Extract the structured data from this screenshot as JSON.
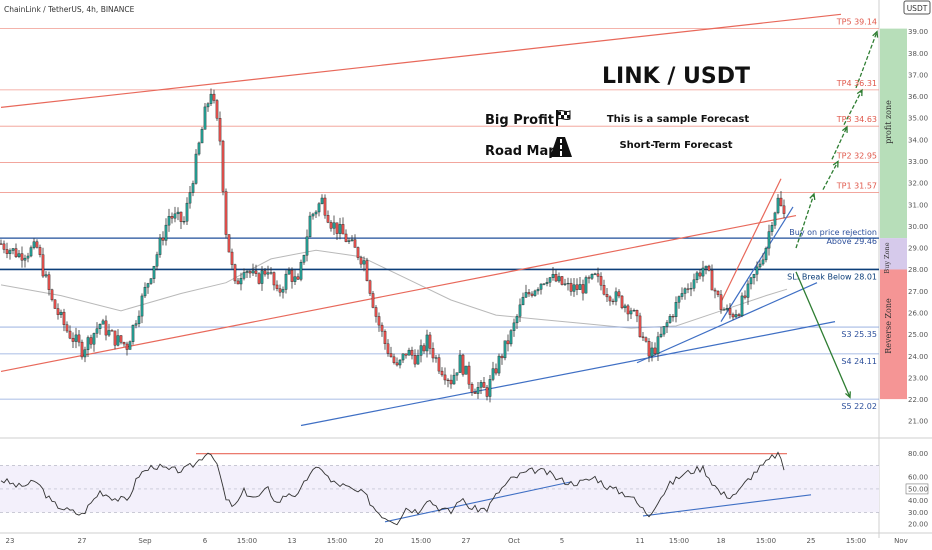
{
  "header": {
    "symbol_line": "ChainLink / TetherUS, 4h, BINANCE",
    "currency_badge": "USDT"
  },
  "texts": {
    "title": "LINK / USDT",
    "big_profit": "Big Profit",
    "road_map": "Road Map",
    "sample": "This is a sample Forecast",
    "short_term": "Short-Term Forecast"
  },
  "zones": {
    "profit": "profit zone",
    "buy": "Buy Zone",
    "reverse": "Reverse Zone"
  },
  "colors": {
    "up": "#26a69a",
    "down": "#ef5350",
    "resistance": "#e8685a",
    "support": "#3f6fc4",
    "arrow": "#2e7d32",
    "profit_zone": "#a5d6a7",
    "buy_zone": "#d1c4e9",
    "reverse_zone": "#f48a8a"
  },
  "chart_data": {
    "type": "candlestick",
    "symbol": "ChainLink / TetherUS",
    "timeframe": "4h",
    "exchange": "BINANCE",
    "ylim": [
      20.5,
      40
    ],
    "y_ticks": [
      21.0,
      22.0,
      23.0,
      24.0,
      25.0,
      26.0,
      27.0,
      28.0,
      29.0,
      30.0,
      31.0,
      32.0,
      33.0,
      34.0,
      35.0,
      36.0,
      37.0,
      38.0,
      39.0
    ],
    "x_ticks": [
      {
        "t": 3,
        "label": "23"
      },
      {
        "t": 27,
        "label": "27"
      },
      {
        "t": 48,
        "label": "Sep"
      },
      {
        "t": 68,
        "label": "6"
      },
      {
        "t": 82,
        "label": "15:00"
      },
      {
        "t": 97,
        "label": "13"
      },
      {
        "t": 112,
        "label": "15:00"
      },
      {
        "t": 126,
        "label": "20"
      },
      {
        "t": 140,
        "label": "15:00"
      },
      {
        "t": 155,
        "label": "27"
      },
      {
        "t": 171,
        "label": "Oct"
      },
      {
        "t": 187,
        "label": "5"
      },
      {
        "t": 213,
        "label": "11"
      },
      {
        "t": 226,
        "label": "15:00"
      },
      {
        "t": 240,
        "label": "18"
      },
      {
        "t": 255,
        "label": "15:00"
      },
      {
        "t": 270,
        "label": "25"
      },
      {
        "t": 285,
        "label": "15:00"
      },
      {
        "t": 300,
        "label": "Nov"
      },
      {
        "t": 316,
        "label": "5"
      }
    ],
    "close_path": [
      [
        0,
        29.2
      ],
      [
        6,
        28.7
      ],
      [
        12,
        29.0
      ],
      [
        17,
        26.5
      ],
      [
        22,
        25.2
      ],
      [
        27,
        24.3
      ],
      [
        33,
        25.5
      ],
      [
        38,
        24.8
      ],
      [
        42,
        24.5
      ],
      [
        46,
        26.2
      ],
      [
        51,
        28.3
      ],
      [
        56,
        30.5
      ],
      [
        61,
        30.2
      ],
      [
        65,
        33.0
      ],
      [
        68,
        35.2
      ],
      [
        70,
        36.3
      ],
      [
        73,
        34.0
      ],
      [
        75,
        29.8
      ],
      [
        78,
        27.2
      ],
      [
        81,
        28.2
      ],
      [
        85,
        27.5
      ],
      [
        89,
        28.1
      ],
      [
        92,
        26.8
      ],
      [
        96,
        27.9
      ],
      [
        99,
        27.3
      ],
      [
        103,
        30.4
      ],
      [
        107,
        31.2
      ],
      [
        110,
        30.2
      ],
      [
        114,
        29.6
      ],
      [
        118,
        28.9
      ],
      [
        121,
        28.4
      ],
      [
        125,
        25.9
      ],
      [
        128,
        24.6
      ],
      [
        132,
        23.4
      ],
      [
        135,
        24.2
      ],
      [
        139,
        23.9
      ],
      [
        142,
        24.7
      ],
      [
        146,
        23.6
      ],
      [
        150,
        22.9
      ],
      [
        153,
        23.8
      ],
      [
        157,
        22.6
      ],
      [
        162,
        22.4
      ],
      [
        166,
        23.8
      ],
      [
        170,
        25.0
      ],
      [
        174,
        26.6
      ],
      [
        178,
        27.2
      ],
      [
        182,
        27.7
      ],
      [
        186,
        27.4
      ],
      [
        190,
        27.1
      ],
      [
        194,
        27.2
      ],
      [
        198,
        27.6
      ],
      [
        202,
        27.0
      ],
      [
        206,
        26.6
      ],
      [
        210,
        26.2
      ],
      [
        213,
        25.2
      ],
      [
        216,
        24.0
      ],
      [
        219,
        24.6
      ],
      [
        223,
        25.8
      ],
      [
        227,
        26.9
      ],
      [
        231,
        27.6
      ],
      [
        234,
        28.1
      ],
      [
        237,
        27.4
      ],
      [
        240,
        26.3
      ],
      [
        243,
        25.9
      ],
      [
        246,
        26.2
      ],
      [
        249,
        27.0
      ],
      [
        252,
        28.0
      ],
      [
        255,
        29.1
      ],
      [
        257,
        30.4
      ],
      [
        259,
        31.2
      ],
      [
        261,
        30.5
      ]
    ],
    "moving_average": [
      [
        0,
        27.3
      ],
      [
        20,
        26.8
      ],
      [
        40,
        26.1
      ],
      [
        60,
        26.9
      ],
      [
        75,
        27.4
      ],
      [
        90,
        28.5
      ],
      [
        105,
        28.9
      ],
      [
        120,
        28.6
      ],
      [
        135,
        27.6
      ],
      [
        150,
        26.6
      ],
      [
        165,
        25.9
      ],
      [
        180,
        25.7
      ],
      [
        195,
        25.5
      ],
      [
        210,
        25.3
      ],
      [
        225,
        25.4
      ],
      [
        240,
        26.1
      ],
      [
        255,
        26.8
      ],
      [
        262,
        27.1
      ]
    ],
    "levels": [
      {
        "label": "TP5 39.14",
        "value": 39.14,
        "kind": "target"
      },
      {
        "label": "TP4 36.31",
        "value": 36.31,
        "kind": "target"
      },
      {
        "label": "TP3 34.63",
        "value": 34.63,
        "kind": "target"
      },
      {
        "label": "TP2 32.95",
        "value": 32.95,
        "kind": "target"
      },
      {
        "label": "TP1 31.57",
        "value": 31.57,
        "kind": "target"
      },
      {
        "label": "Buy on price rejection",
        "value": 29.46,
        "kind": "buy"
      },
      {
        "label": "Above 29.46",
        "value": 29.46,
        "kind": "buy"
      },
      {
        "label": "SL: Break Below 28.01",
        "value": 28.01,
        "kind": "stop"
      },
      {
        "label": "S3 25.35",
        "value": 25.35,
        "kind": "support"
      },
      {
        "label": "S4 24.11",
        "value": 24.11,
        "kind": "support"
      },
      {
        "label": "S5 22.02",
        "value": 22.02,
        "kind": "support"
      }
    ],
    "trendlines": [
      {
        "kind": "resistance",
        "from": [
          0,
          35.5
        ],
        "to": [
          280,
          39.8
        ]
      },
      {
        "kind": "resistance",
        "from": [
          0,
          23.3
        ],
        "to": [
          265,
          30.5
        ]
      },
      {
        "kind": "resistance",
        "from": [
          240,
          26.5
        ],
        "to": [
          260,
          32.2
        ]
      },
      {
        "kind": "support",
        "from": [
          100,
          20.8
        ],
        "to": [
          278,
          25.6
        ]
      },
      {
        "kind": "support",
        "from": [
          212,
          23.7
        ],
        "to": [
          272,
          27.4
        ]
      },
      {
        "kind": "support",
        "from": [
          240,
          25.6
        ],
        "to": [
          264,
          30.9
        ]
      }
    ],
    "forecast_arrows": [
      {
        "kind": "up",
        "from": [
          265,
          29.0
        ],
        "to": [
          271,
          31.5
        ]
      },
      {
        "kind": "up",
        "from": [
          274,
          31.7
        ],
        "to": [
          279,
          33.0
        ]
      },
      {
        "kind": "up",
        "from": [
          277,
          33.1
        ],
        "to": [
          282,
          34.6
        ]
      },
      {
        "kind": "up",
        "from": [
          281,
          34.7
        ],
        "to": [
          287,
          36.3
        ]
      },
      {
        "kind": "up",
        "from": [
          285,
          36.4
        ],
        "to": [
          292,
          39.0
        ]
      },
      {
        "kind": "down",
        "from": [
          265,
          27.9
        ],
        "to": [
          283,
          22.1
        ]
      }
    ],
    "rsi": {
      "ylim": [
        15,
        90
      ],
      "y_ticks": [
        20.0,
        30.0,
        40.0,
        50.0,
        60.0,
        80.0
      ],
      "upper_band": 70,
      "mid": 50,
      "lower_band": 30,
      "values": [
        [
          0,
          58
        ],
        [
          6,
          52
        ],
        [
          12,
          56
        ],
        [
          17,
          38
        ],
        [
          22,
          32
        ],
        [
          27,
          28
        ],
        [
          33,
          48
        ],
        [
          38,
          42
        ],
        [
          42,
          40
        ],
        [
          46,
          62
        ],
        [
          51,
          70
        ],
        [
          56,
          66
        ],
        [
          61,
          66
        ],
        [
          65,
          72
        ],
        [
          68,
          80
        ],
        [
          70,
          82
        ],
        [
          73,
          62
        ],
        [
          75,
          40
        ],
        [
          78,
          35
        ],
        [
          81,
          48
        ],
        [
          85,
          42
        ],
        [
          89,
          50
        ],
        [
          92,
          38
        ],
        [
          96,
          47
        ],
        [
          99,
          44
        ],
        [
          103,
          64
        ],
        [
          107,
          68
        ],
        [
          110,
          56
        ],
        [
          114,
          53
        ],
        [
          118,
          48
        ],
        [
          121,
          46
        ],
        [
          125,
          32
        ],
        [
          128,
          26
        ],
        [
          132,
          22
        ],
        [
          135,
          34
        ],
        [
          139,
          31
        ],
        [
          142,
          42
        ],
        [
          146,
          34
        ],
        [
          150,
          30
        ],
        [
          153,
          42
        ],
        [
          157,
          33
        ],
        [
          162,
          33
        ],
        [
          166,
          48
        ],
        [
          170,
          58
        ],
        [
          174,
          63
        ],
        [
          178,
          66
        ],
        [
          182,
          64
        ],
        [
          186,
          58
        ],
        [
          190,
          55
        ],
        [
          194,
          56
        ],
        [
          198,
          60
        ],
        [
          202,
          52
        ],
        [
          206,
          48
        ],
        [
          210,
          44
        ],
        [
          213,
          35
        ],
        [
          216,
          28
        ],
        [
          219,
          40
        ],
        [
          223,
          54
        ],
        [
          227,
          62
        ],
        [
          231,
          66
        ],
        [
          234,
          68
        ],
        [
          237,
          56
        ],
        [
          240,
          46
        ],
        [
          243,
          44
        ],
        [
          246,
          48
        ],
        [
          249,
          58
        ],
        [
          252,
          66
        ],
        [
          255,
          72
        ],
        [
          257,
          77
        ],
        [
          259,
          80
        ],
        [
          261,
          66
        ]
      ],
      "lines": [
        {
          "kind": "resistance",
          "from": [
            65,
            80
          ],
          "to": [
            262,
            80
          ]
        },
        {
          "kind": "support",
          "from": [
            128,
            22
          ],
          "to": [
            190,
            56
          ]
        },
        {
          "kind": "support",
          "from": [
            214,
            27
          ],
          "to": [
            270,
            45
          ]
        }
      ]
    },
    "grid": false,
    "legend": "none"
  }
}
